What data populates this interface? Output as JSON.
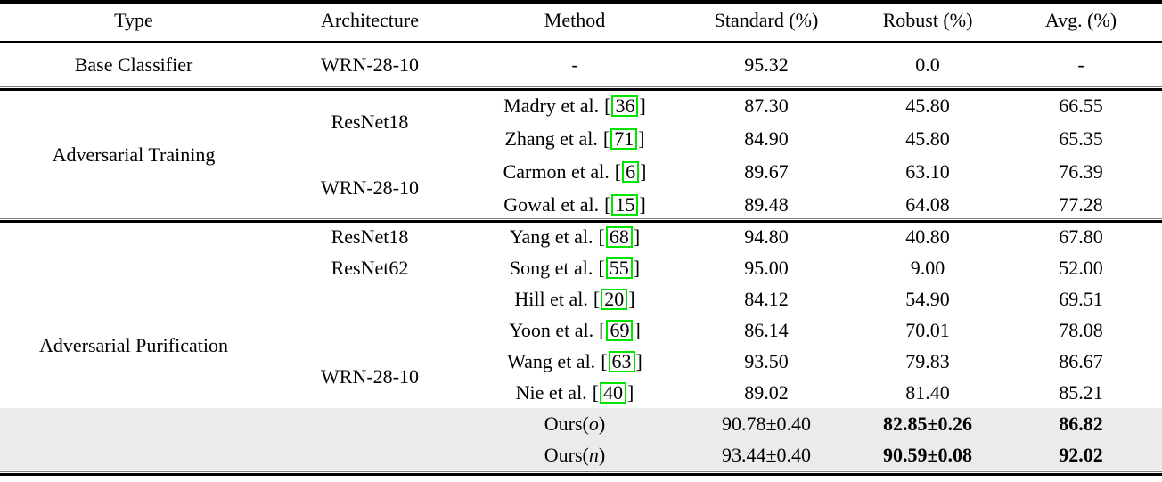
{
  "table": {
    "columns": {
      "type": "Type",
      "architecture": "Architecture",
      "method": "Method",
      "standard": "Standard (%)",
      "robust": "Robust (%)",
      "avg": "Avg. (%)"
    },
    "brackets": {
      "open": "[",
      "close": "]"
    },
    "colors": {
      "citation_box_green": "#00e400",
      "highlight_row_gray": "#ebebeb"
    },
    "base_row": {
      "type": "Base Classifier",
      "architecture": "WRN-28-10",
      "method": "-",
      "standard": "95.32",
      "robust": "0.0",
      "avg": "-"
    },
    "training": {
      "type_label": "Adversarial Training",
      "arch_group_1": "ResNet18",
      "arch_group_2": "WRN-28-10",
      "rows": [
        {
          "author": "Madry et al.",
          "cite": "36",
          "standard": "87.30",
          "robust": "45.80",
          "avg": "66.55"
        },
        {
          "author": "Zhang et al.",
          "cite": "71",
          "standard": "84.90",
          "robust": "45.80",
          "avg": "65.35"
        },
        {
          "author": "Carmon et al.",
          "cite": "6",
          "standard": "89.67",
          "robust": "63.10",
          "avg": "76.39"
        },
        {
          "author": "Gowal et al.",
          "cite": "15",
          "standard": "89.48",
          "robust": "64.08",
          "avg": "77.28"
        }
      ]
    },
    "purification": {
      "type_label": "Adversarial Purification",
      "arch_row_1": "ResNet18",
      "arch_row_2": "ResNet62",
      "arch_group": "WRN-28-10",
      "rows": [
        {
          "author": "Yang et al.",
          "cite": "68",
          "standard": "94.80",
          "robust": "40.80",
          "avg": "67.80"
        },
        {
          "author": "Song et al.",
          "cite": "55",
          "standard": "95.00",
          "robust": "9.00",
          "avg": "52.00"
        },
        {
          "author": "Hill et al.",
          "cite": "20",
          "standard": "84.12",
          "robust": "54.90",
          "avg": "69.51"
        },
        {
          "author": "Yoon et al.",
          "cite": "69",
          "standard": "86.14",
          "robust": "70.01",
          "avg": "78.08"
        },
        {
          "author": "Wang et al.",
          "cite": "63",
          "standard": "93.50",
          "robust": "79.83",
          "avg": "86.67"
        },
        {
          "author": "Nie et al.",
          "cite": "40",
          "standard": "89.02",
          "robust": "81.40",
          "avg": "85.21"
        }
      ],
      "ours_rows": [
        {
          "pre": "Ours(",
          "var": "o",
          "post": ")",
          "standard": "90.78±0.40",
          "robust": "82.85±0.26",
          "avg": "86.82"
        },
        {
          "pre": "Ours(",
          "var": "n",
          "post": ")",
          "standard": "93.44±0.40",
          "robust": "90.59±0.08",
          "avg": "92.02"
        }
      ]
    }
  }
}
